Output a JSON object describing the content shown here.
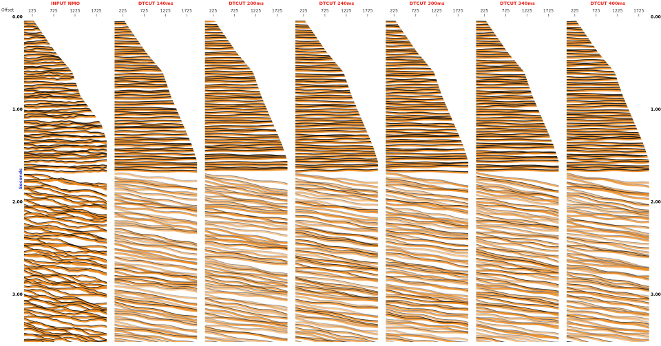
{
  "offset_label": "Offset",
  "time_label": "Seconds",
  "time_ticks": [
    "0.00",
    "1.00",
    "2.00",
    "3.00"
  ],
  "offset_ticks": [
    "225",
    "725",
    "1225",
    "1725"
  ],
  "panels": [
    {
      "title": "INPUT NMO"
    },
    {
      "title": "DTCUT 140ms"
    },
    {
      "title": "DTCUT 200ms"
    },
    {
      "title": "DTCUT 240ms"
    },
    {
      "title": "DTCUT 300ms"
    },
    {
      "title": "DTCUT 340ms"
    },
    {
      "title": "DTCUT 400ms"
    }
  ]
}
